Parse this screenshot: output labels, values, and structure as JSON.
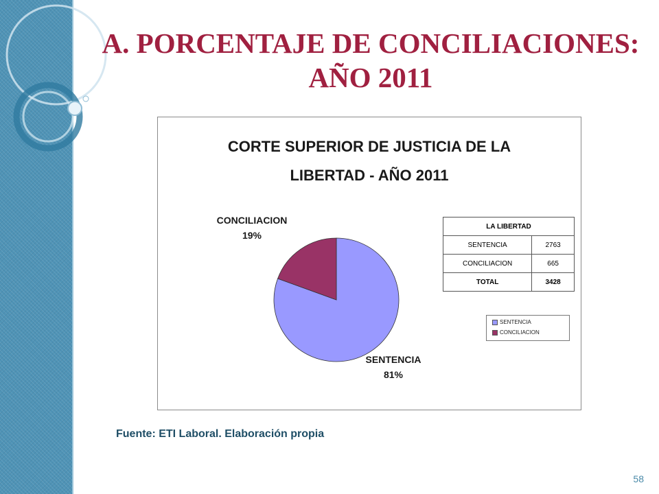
{
  "slide": {
    "title_line1": "A. PORCENTAJE DE CONCILIACIONES:",
    "title_line2": "AÑO 2011",
    "source": "Fuente: ETI Laboral. Elaboración propia",
    "page_number": "58"
  },
  "colors": {
    "title": "#a02040",
    "side_band": "#4f93b6",
    "sentencia": "#9999ff",
    "conciliacion": "#993366"
  },
  "chart_data": {
    "type": "pie",
    "title_line1": "CORTE SUPERIOR DE JUSTICIA DE LA",
    "title_line2": "LIBERTAD - AÑO 2011",
    "categories": [
      "SENTENCIA",
      "CONCILIACION"
    ],
    "values": [
      2763,
      665
    ],
    "percent_labels": [
      "81%",
      "19%"
    ],
    "legend": [
      "SENTENCIA",
      "CONCILIACION"
    ],
    "legend_position": "right"
  },
  "table": {
    "header": "LA LIBERTAD",
    "rows": [
      {
        "label": "SENTENCIA",
        "value": "2763"
      },
      {
        "label": "CONCILIACION",
        "value": "665"
      }
    ],
    "total": {
      "label": "TOTAL",
      "value": "3428"
    }
  }
}
